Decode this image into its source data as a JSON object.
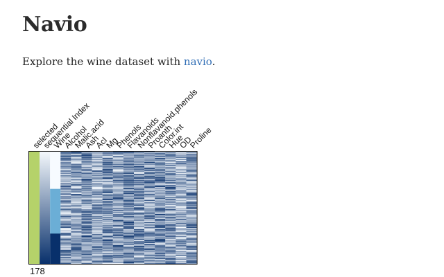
{
  "page": {
    "title": "Navio",
    "intro_prefix": "Explore the wine dataset with ",
    "intro_link": "navio",
    "intro_suffix": "."
  },
  "navio": {
    "count": "178",
    "colors": {
      "selected": "#b5d26a",
      "border": "#111111",
      "blue_light": "#f4f8fc",
      "blue_dark": "#08306b"
    },
    "wine_classes": [
      {
        "class": "1",
        "rows": 59,
        "color": "#f7fbff"
      },
      {
        "class": "2",
        "rows": 71,
        "color": "#6baed6"
      },
      {
        "class": "3",
        "rows": 48,
        "color": "#08306b"
      }
    ],
    "columns": [
      {
        "name": "selected",
        "kind": "selected"
      },
      {
        "name": "sequential Index",
        "kind": "sequential"
      },
      {
        "name": "Wine",
        "kind": "wine"
      },
      {
        "name": "Alcohol",
        "kind": "numeric"
      },
      {
        "name": "Malic.acid",
        "kind": "numeric"
      },
      {
        "name": "Ash",
        "kind": "numeric"
      },
      {
        "name": "Acl",
        "kind": "numeric"
      },
      {
        "name": "Mg",
        "kind": "numeric"
      },
      {
        "name": "Phenols",
        "kind": "numeric"
      },
      {
        "name": "Flavanoids",
        "kind": "numeric"
      },
      {
        "name": "Nonflavanoid.phenols",
        "kind": "numeric"
      },
      {
        "name": "Proanth",
        "kind": "numeric"
      },
      {
        "name": "Color.int",
        "kind": "numeric"
      },
      {
        "name": "Hue",
        "kind": "numeric"
      },
      {
        "name": "OD",
        "kind": "numeric"
      },
      {
        "name": "Proline",
        "kind": "numeric"
      }
    ]
  }
}
